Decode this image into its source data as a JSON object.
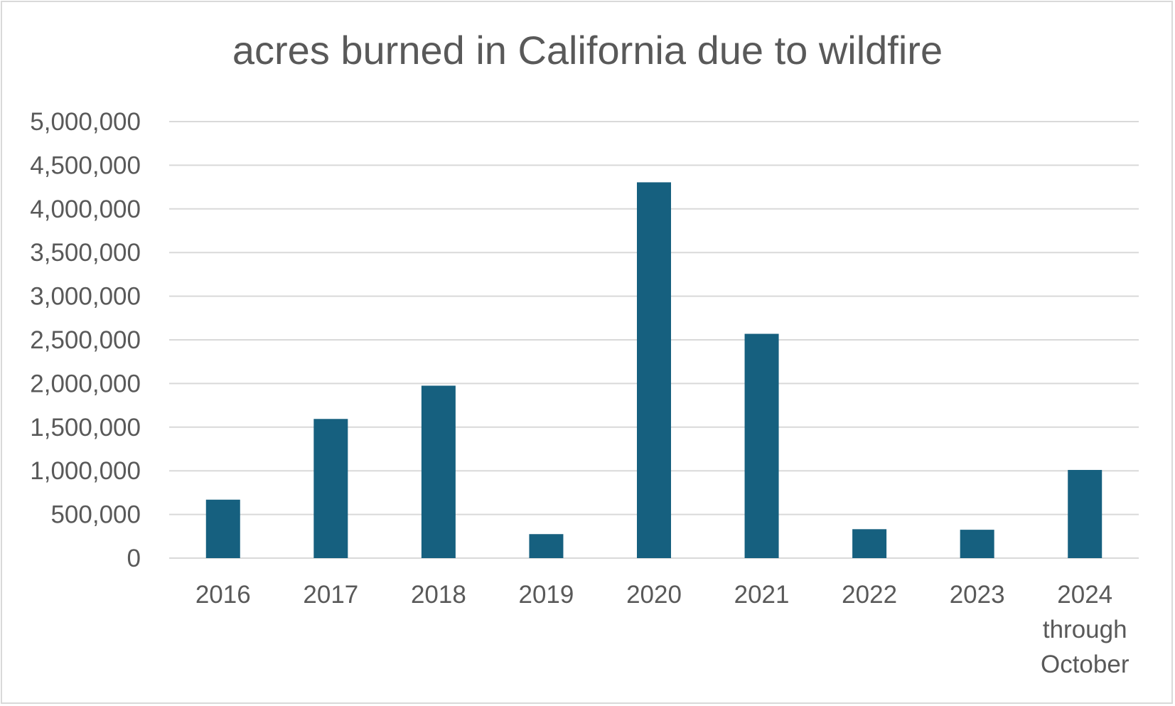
{
  "chart_data": {
    "type": "bar",
    "title": "acres burned in California due to wildfire",
    "xlabel": "",
    "ylabel": "",
    "categories": [
      "2016",
      "2017",
      "2018",
      "2019",
      "2020",
      "2021",
      "2022",
      "2023",
      "2024 through October"
    ],
    "values": [
      669534,
      1594000,
      1975086,
      274886,
      4304379,
      2569009,
      331358,
      324917,
      1010000
    ],
    "ylim": [
      0,
      5000000
    ],
    "yticks": [
      "0",
      "500,000",
      "1,000,000",
      "1,500,000",
      "2,000,000",
      "2,500,000",
      "3,000,000",
      "3,500,000",
      "4,000,000",
      "4,500,000",
      "5,000,000"
    ],
    "grid": true,
    "legend": "none",
    "colors": {
      "bar": "#16607f",
      "grid": "#d9d9d9",
      "text": "#595959"
    }
  }
}
